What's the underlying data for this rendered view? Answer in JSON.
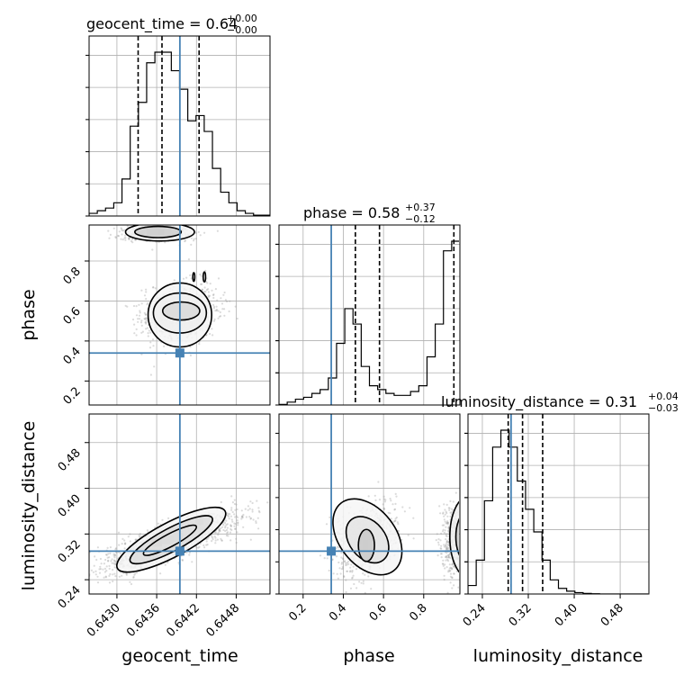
{
  "chart_data": {
    "type": "corner",
    "parameters": [
      "geocent_time",
      "phase",
      "luminosity_distance"
    ],
    "truths": {
      "geocent_time": 0.64395,
      "phase": 0.34,
      "luminosity_distance": 0.29
    },
    "colors": {
      "truth": "#4682b4",
      "hist": "#000000",
      "points": "#999999",
      "grid": "#b0b0b0"
    },
    "titles": {
      "geocent_time": {
        "name": "geocent_time",
        "value": "0.64",
        "plus": "+0.00",
        "minus": "−0.00"
      },
      "phase": {
        "name": "phase",
        "value": "0.58",
        "plus": "+0.37",
        "minus": "−0.12"
      },
      "luminosity_distance": {
        "name": "luminosity_distance",
        "value": "0.31",
        "plus": "+0.04",
        "minus": "−0.03"
      }
    },
    "axis_labels": {
      "geocent_time": "geocent_time",
      "phase": "phase",
      "luminosity_distance": "luminosity_distance"
    },
    "ranges": {
      "geocent_time": [
        0.64258,
        0.64531
      ],
      "phase": [
        0.08,
        0.98
      ],
      "luminosity_distance": [
        0.215,
        0.53
      ]
    },
    "ticks": {
      "geocent_time": [
        "0.6430",
        "0.6436",
        "0.6442",
        "0.6448"
      ],
      "phase": [
        "0.2",
        "0.4",
        "0.6",
        "0.8"
      ],
      "luminosity_distance": [
        "0.24",
        "0.32",
        "0.40",
        "0.48"
      ]
    },
    "quantiles": {
      "geocent_time": [
        0.64332,
        0.64368,
        0.64424
      ],
      "phase": [
        0.46,
        0.58,
        0.95
      ],
      "luminosity_distance": [
        0.285,
        0.31,
        0.345
      ]
    },
    "hist_geocent_time": [
      1,
      2,
      3,
      5,
      14,
      34,
      43,
      58,
      62,
      62,
      55,
      48,
      36,
      38,
      32,
      18,
      9,
      5,
      2,
      1,
      0.3,
      0.3
    ],
    "hist_phase": [
      0.3,
      1.5,
      3,
      4,
      6,
      8,
      14,
      32,
      50,
      42,
      20,
      10,
      8,
      6,
      5,
      5,
      7,
      10,
      25,
      42,
      80,
      85
    ],
    "hist_luminosity_distance": [
      3,
      12,
      33,
      52,
      58,
      52,
      40,
      30,
      22,
      12,
      5,
      2,
      1,
      0.5,
      0.2,
      0.1,
      0,
      0,
      0,
      0,
      0,
      0
    ]
  }
}
